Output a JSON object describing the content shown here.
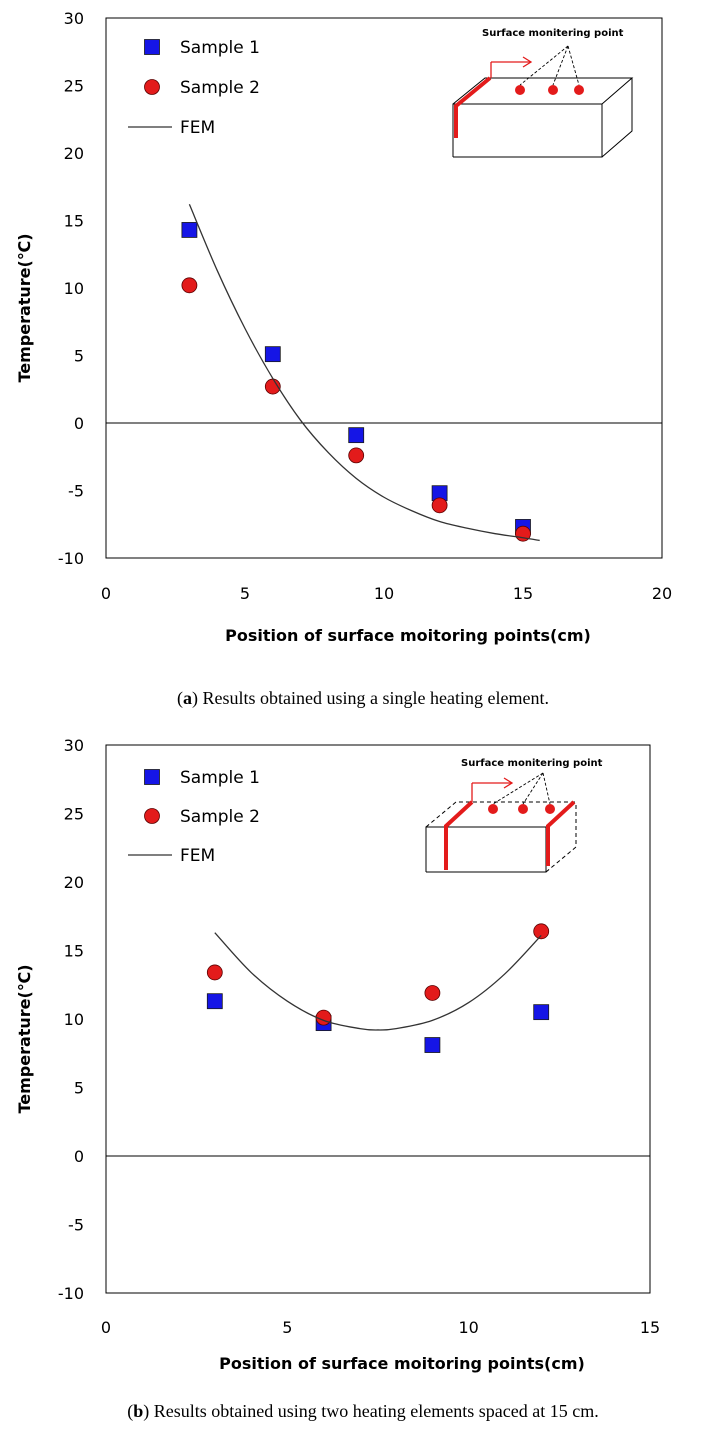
{
  "chart_data": [
    {
      "type": "scatter",
      "panel": "a",
      "caption_letter": "a",
      "caption_text": "Results obtained using a single heating element.",
      "xlabel": "Position of surface moitoring points(cm)",
      "ylabel": "Temperature(℃)",
      "xlim": [
        0,
        20
      ],
      "ylim": [
        -10,
        30
      ],
      "xticks": [
        0,
        5,
        10,
        15,
        20
      ],
      "yticks": [
        -10,
        -5,
        0,
        5,
        10,
        15,
        20,
        25,
        30
      ],
      "zero_line": true,
      "legend_position": "top-left",
      "inset_label": "Surface monitering point",
      "series": [
        {
          "name": "Sample 1",
          "marker": "square",
          "color": "#1515e6",
          "x": [
            3,
            6,
            9,
            12,
            15
          ],
          "y": [
            14.3,
            5.1,
            -0.9,
            -5.2,
            -7.7
          ]
        },
        {
          "name": "Sample 2",
          "marker": "circle",
          "color": "#e31b1b",
          "x": [
            3,
            6,
            9,
            12,
            15
          ],
          "y": [
            10.2,
            2.7,
            -2.4,
            -6.1,
            -8.2
          ]
        },
        {
          "name": "FEM",
          "marker": "line",
          "color": "#333333",
          "x": [
            3,
            4,
            5,
            6,
            7,
            8,
            9,
            10,
            11,
            12,
            13,
            14,
            15,
            15.6
          ],
          "y": [
            16.2,
            11.3,
            7.0,
            3.3,
            0.2,
            -2.2,
            -4.1,
            -5.5,
            -6.5,
            -7.3,
            -7.8,
            -8.2,
            -8.5,
            -8.7
          ]
        }
      ]
    },
    {
      "type": "scatter",
      "panel": "b",
      "caption_letter": "b",
      "caption_text": "Results obtained using two heating elements spaced at 15 cm.",
      "xlabel": "Position of surface moitoring points(cm)",
      "ylabel": "Temperature(℃)",
      "xlim": [
        0,
        15
      ],
      "ylim": [
        -10,
        30
      ],
      "xticks": [
        0,
        5,
        10,
        15
      ],
      "yticks": [
        -10,
        -5,
        0,
        5,
        10,
        15,
        20,
        25,
        30
      ],
      "zero_line": true,
      "legend_position": "top-left",
      "inset_label": "Surface monitering point",
      "series": [
        {
          "name": "Sample 1",
          "marker": "square",
          "color": "#1515e6",
          "x": [
            3,
            6,
            9,
            12
          ],
          "y": [
            11.3,
            9.7,
            8.1,
            10.5
          ]
        },
        {
          "name": "Sample 2",
          "marker": "circle",
          "color": "#e31b1b",
          "x": [
            3,
            6,
            9,
            12
          ],
          "y": [
            13.4,
            10.1,
            11.9,
            16.4
          ]
        },
        {
          "name": "FEM",
          "marker": "line",
          "color": "#333333",
          "x": [
            3,
            4,
            5,
            6,
            7,
            7.5,
            8,
            9,
            10,
            11,
            12
          ],
          "y": [
            16.3,
            13.4,
            11.3,
            9.9,
            9.3,
            9.2,
            9.3,
            9.9,
            11.2,
            13.3,
            16.1
          ]
        }
      ]
    }
  ]
}
